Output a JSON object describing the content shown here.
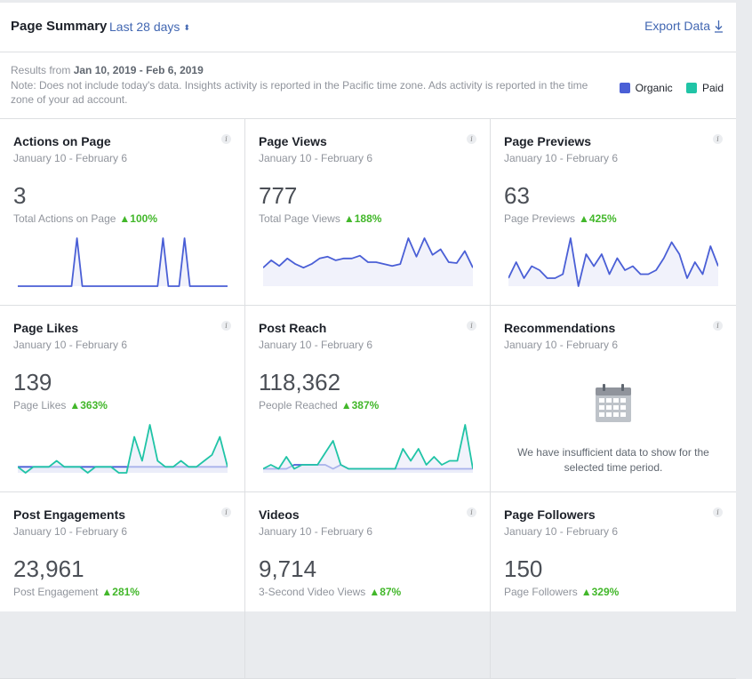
{
  "header": {
    "title": "Page Summary",
    "range": "Last 28 days",
    "range_caret": "⬍",
    "export": "Export Data"
  },
  "notes": {
    "results_prefix": "Results from ",
    "results_dates": "Jan 10, 2019 - Feb 6, 2019",
    "note": "Note: Does not include today's data. Insights activity is reported in the Pacific time zone. Ads activity is reported in the time zone of your ad account."
  },
  "legend": [
    {
      "label": "Organic",
      "color": "#4a5fd6"
    },
    {
      "label": "Paid",
      "color": "#20c4a6"
    }
  ],
  "colors": {
    "organic": "#4a5fd6",
    "paid": "#20c4a6",
    "positive": "#42b72a",
    "link": "#4267b2"
  },
  "cards": [
    {
      "title": "Actions on Page",
      "date": "January 10 - February 6",
      "value": "3",
      "sub": "Total Actions on Page",
      "change": "▲100%",
      "chart_data": {
        "type": "line",
        "series": [
          {
            "color": "#4a5fd6",
            "values": [
              0,
              0,
              0,
              0,
              0,
              0,
              0,
              0,
              0,
              0,
              0,
              1,
              0,
              0,
              0,
              0,
              0,
              0,
              0,
              0,
              0,
              0,
              0,
              0,
              0,
              0,
              0,
              1,
              0,
              0,
              0,
              1,
              0,
              0,
              0,
              0,
              0,
              0,
              0,
              0
            ]
          }
        ]
      }
    },
    {
      "title": "Page Views",
      "date": "January 10 - February 6",
      "value": "777",
      "sub": "Total Page Views",
      "change": "▲188%",
      "chart_data": {
        "type": "line",
        "series": [
          {
            "color": "#4a5fd6",
            "values": [
              20,
              28,
              22,
              30,
              24,
              20,
              24,
              30,
              32,
              28,
              30,
              30,
              33,
              26,
              26,
              24,
              22,
              24,
              52,
              32,
              52,
              34,
              40,
              26,
              25,
              38,
              20
            ]
          }
        ]
      }
    },
    {
      "title": "Page Previews",
      "date": "January 10 - February 6",
      "value": "63",
      "sub": "Page Previews",
      "change": "▲425%",
      "chart_data": {
        "type": "line",
        "series": [
          {
            "color": "#4a5fd6",
            "values": [
              2,
              6,
              2,
              5,
              4,
              2,
              2,
              3,
              12,
              0,
              8,
              5,
              8,
              3,
              7,
              4,
              5,
              3,
              3,
              4,
              7,
              11,
              8,
              2,
              6,
              3,
              10,
              5
            ]
          }
        ]
      }
    },
    {
      "title": "Page Likes",
      "date": "January 10 - February 6",
      "value": "139",
      "sub": "Page Likes",
      "change": "▲363%",
      "chart_data": {
        "type": "line",
        "series": [
          {
            "color": "#4a5fd6",
            "values": [
              1,
              1,
              1,
              1,
              1,
              1,
              1,
              1,
              1,
              1,
              1,
              1,
              1,
              1,
              1,
              1,
              1,
              1,
              1,
              1,
              1,
              1,
              1,
              1,
              1,
              1,
              1,
              1
            ]
          },
          {
            "color": "#20c4a6",
            "values": [
              1,
              0,
              1,
              1,
              1,
              2,
              1,
              1,
              1,
              0,
              1,
              1,
              1,
              0,
              0,
              6,
              2,
              8,
              2,
              1,
              1,
              2,
              1,
              1,
              2,
              3,
              6,
              1
            ]
          }
        ]
      }
    },
    {
      "title": "Post Reach",
      "date": "January 10 - February 6",
      "value": "118,362",
      "sub": "People Reached",
      "change": "▲387%",
      "chart_data": {
        "type": "line",
        "series": [
          {
            "color": "#4a5fd6",
            "values": [
              1,
              1,
              1,
              1,
              2,
              2,
              2,
              2,
              2,
              1,
              2,
              1,
              1,
              1,
              1,
              1,
              1,
              1,
              1,
              1,
              1,
              1,
              1,
              1,
              1,
              1,
              1,
              1
            ]
          },
          {
            "color": "#20c4a6",
            "values": [
              1,
              2,
              1,
              4,
              1,
              2,
              2,
              2,
              5,
              8,
              2,
              1,
              1,
              1,
              1,
              1,
              1,
              1,
              6,
              3,
              6,
              2,
              4,
              2,
              3,
              3,
              12,
              1
            ]
          }
        ]
      }
    },
    {
      "title": "Recommendations",
      "date": "January 10 - February 6",
      "insufficient": "We have insufficient data to show for the selected time period."
    },
    {
      "title": "Post Engagements",
      "date": "January 10 - February 6",
      "value": "23,961",
      "sub": "Post Engagement",
      "change": "▲281%"
    },
    {
      "title": "Videos",
      "date": "January 10 - February 6",
      "value": "9,714",
      "sub": "3-Second Video Views",
      "change": "▲87%"
    },
    {
      "title": "Page Followers",
      "date": "January 10 - February 6",
      "value": "150",
      "sub": "Page Followers",
      "change": "▲329%"
    }
  ]
}
